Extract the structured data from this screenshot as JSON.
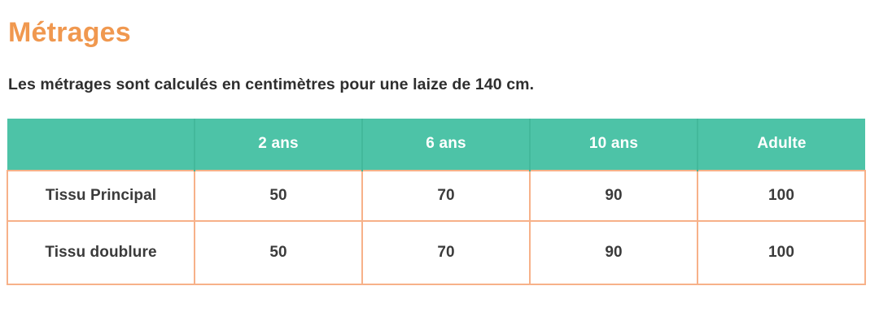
{
  "page": {
    "title": "Métrages",
    "subtitle": "Les métrages sont calculés en centimètres pour une laize de 140 cm."
  },
  "colors": {
    "title_orange": "#f0984f",
    "header_teal": "#4dc3a7",
    "header_divider_teal": "#43b89b",
    "body_border_peach": "#f7b189",
    "text_dark": "#2e2e2e",
    "header_text": "#ffffff"
  },
  "table": {
    "headers": [
      "",
      "2 ans",
      "6 ans",
      "10 ans",
      "Adulte"
    ],
    "rows": [
      {
        "label": "Tissu Principal",
        "values": [
          "50",
          "70",
          "90",
          "100"
        ]
      },
      {
        "label": "Tissu doublure",
        "values": [
          "50",
          "70",
          "90",
          "100"
        ]
      }
    ]
  }
}
